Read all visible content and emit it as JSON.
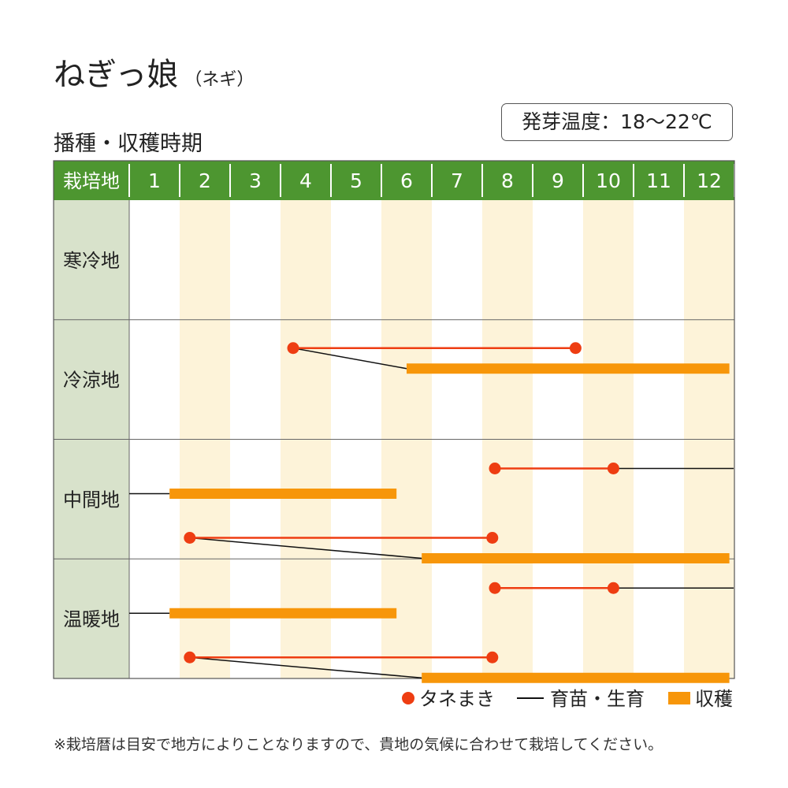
{
  "title": {
    "main": "ねぎっ娘",
    "sub": "（ネギ）"
  },
  "schedule_title": "播種・収穫時期",
  "germination_temp": "発芽温度：18～22℃",
  "footnote": "※栽培暦は目安で地方によりことなりますので、貴地の気候に合わせて栽培してください。",
  "colors": {
    "header_green": "#4d9630",
    "region_bg": "#d8e2cb",
    "stripe": "#fdf3d9",
    "sowing_red": "#ee3d12",
    "harvest_orange": "#f7960a",
    "nursery_black": "#111111"
  },
  "chart_data": {
    "type": "table",
    "header_label": "栽培地",
    "months": [
      "1",
      "2",
      "3",
      "4",
      "5",
      "6",
      "7",
      "8",
      "9",
      "10",
      "11",
      "12"
    ],
    "regions": [
      {
        "name": "寒冷地",
        "schedules": []
      },
      {
        "name": "冷涼地",
        "schedules": [
          {
            "sowing": [
              4.25,
              9.85
            ],
            "nursery": [
              4.25,
              6.5
            ],
            "harvest": [
              6.5,
              12.9
            ]
          }
        ]
      },
      {
        "name": "中間地",
        "schedules": [
          {
            "sowing": [
              8.25,
              10.6
            ],
            "nursery": [
              10.6,
              13.0
            ]
          },
          {
            "nursery": [
              1.0,
              1.8
            ],
            "harvest": [
              1.8,
              6.3
            ]
          },
          {
            "sowing": [
              2.2,
              8.2
            ],
            "nursery": [
              2.2,
              6.8
            ],
            "harvest": [
              6.8,
              12.9
            ]
          }
        ]
      },
      {
        "name": "温暖地",
        "schedules": [
          {
            "sowing": [
              8.25,
              10.6
            ],
            "nursery": [
              10.6,
              13.0
            ]
          },
          {
            "nursery": [
              1.0,
              1.8
            ],
            "harvest": [
              1.8,
              6.3
            ]
          },
          {
            "sowing": [
              2.2,
              8.2
            ],
            "nursery": [
              2.2,
              6.8
            ],
            "harvest": [
              6.8,
              12.9
            ]
          }
        ]
      }
    ],
    "legend": [
      {
        "key": "sowing",
        "label": "タネまき"
      },
      {
        "key": "nursery",
        "label": "育苗・生育"
      },
      {
        "key": "harvest",
        "label": "収穫"
      }
    ],
    "legend_position": "bottom-right"
  }
}
